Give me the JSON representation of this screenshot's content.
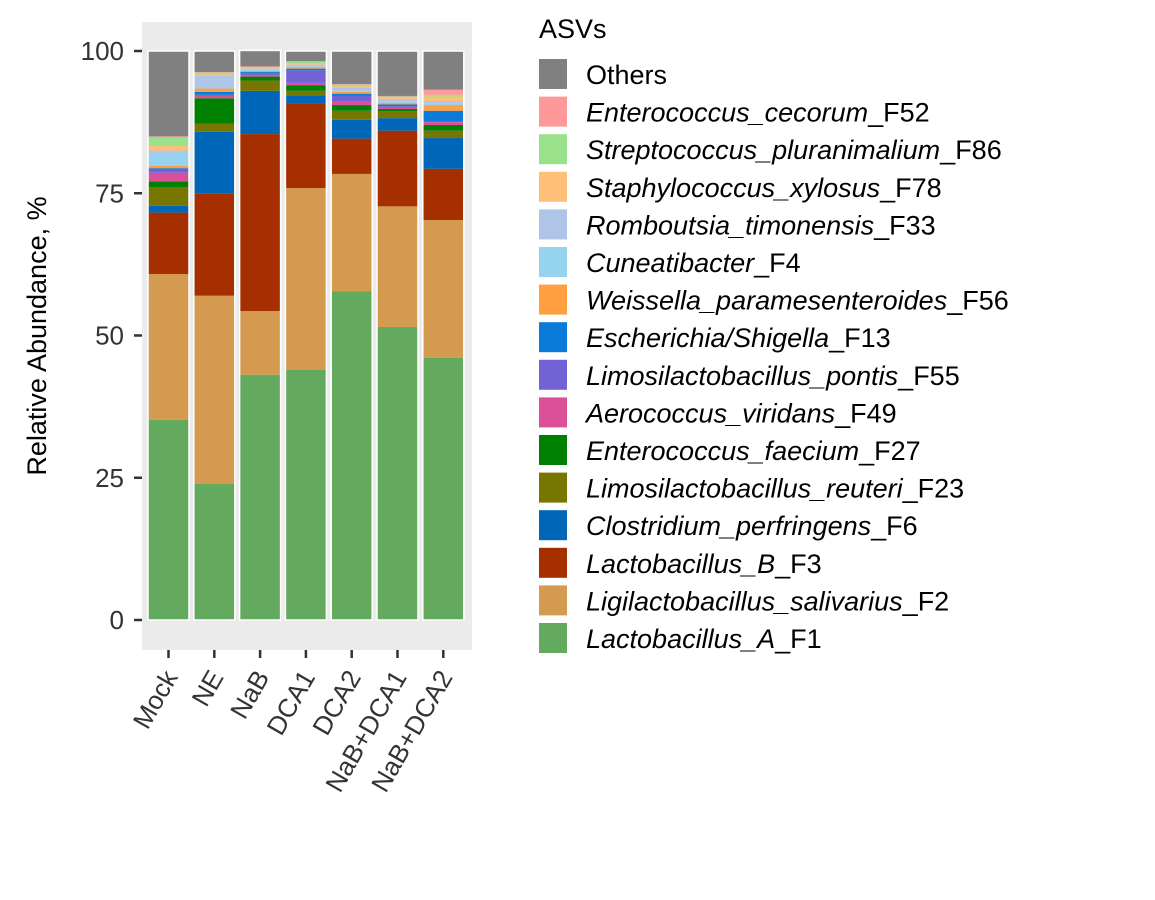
{
  "chart_data": {
    "type": "bar",
    "stacked": true,
    "ylabel": "Relative Abundance, %",
    "ylim": [
      0,
      100
    ],
    "yticks": [
      0,
      25,
      50,
      75,
      100
    ],
    "categories": [
      "Mock",
      "NE",
      "NaB",
      "DCA1",
      "DCA2",
      "NaB+DCA1",
      "NaB+DCA2"
    ],
    "legend_title": "ASVs",
    "legend_position": "right",
    "panel_background": "#EBEBEB",
    "series": [
      {
        "name": "Lactobacillus_A_F1",
        "italic": "Lactobacillus_A",
        "suffix": "_F1",
        "color": "#63AA5E",
        "values": [
          35.2,
          23.9,
          43.1,
          44.0,
          57.8,
          51.5,
          46.1
        ]
      },
      {
        "name": "Ligilactobacillus_salivarius_F2",
        "italic": "Ligilactobacillus_salivarius",
        "suffix": "_F2",
        "color": "#D49B50",
        "values": [
          25.6,
          33.1,
          11.2,
          31.9,
          20.6,
          21.2,
          24.2
        ]
      },
      {
        "name": "Lactobacillus_B_F3",
        "italic": "Lactobacillus_B",
        "suffix": "_F3",
        "color": "#A62F00",
        "values": [
          10.8,
          18.0,
          31.1,
          14.8,
          6.2,
          13.3,
          9.0
        ]
      },
      {
        "name": "Clostridium_perfringens_F6",
        "italic": "Clostridium_perfringens",
        "suffix": "_F6",
        "color": "#0066B8",
        "values": [
          1.2,
          10.8,
          7.6,
          1.5,
          3.3,
          2.2,
          5.4
        ]
      },
      {
        "name": "Limosilactobacillus_reuteri_F23",
        "italic": "Limosilactobacillus_reuteri",
        "suffix": "_F23",
        "color": "#767600",
        "values": [
          3.3,
          1.4,
          1.8,
          0.8,
          1.6,
          1.2,
          1.3
        ]
      },
      {
        "name": "Enterococcus_faecium_F27",
        "italic": "Enterococcus_faecium",
        "suffix": "_F27",
        "color": "#008000",
        "values": [
          1.0,
          4.5,
          0.7,
          1.0,
          1.0,
          0.4,
          1.0
        ]
      },
      {
        "name": "Aerococcus_viridans_F49",
        "italic": "Aerococcus_viridans",
        "suffix": "_F49",
        "color": "#DA4F98",
        "values": [
          1.5,
          0.4,
          0.3,
          0.4,
          0.6,
          0.2,
          0.5
        ]
      },
      {
        "name": "Limosilactobacillus_pontis_F55",
        "italic": "Limosilactobacillus_pontis",
        "suffix": "_F55",
        "color": "#7163D6",
        "values": [
          0.5,
          0.2,
          0.2,
          2.2,
          1.0,
          0.3,
          0.2
        ]
      },
      {
        "name": "Escherichia/Shigella_F13",
        "italic": "Escherichia/Shigella",
        "suffix": "_F13",
        "color": "#0A7BD8",
        "values": [
          0.3,
          0.5,
          0.3,
          0.3,
          0.4,
          0.3,
          1.8
        ]
      },
      {
        "name": "Weissella_paramesenteroides_F56",
        "italic": "Weissella_paramesenteroides",
        "suffix": "_F56",
        "color": "#FF9F40",
        "values": [
          0.4,
          0.6,
          0.2,
          0.2,
          0.3,
          0.3,
          1.0
        ]
      },
      {
        "name": "Cuneatibacter_F4",
        "italic": "Cuneatibacter",
        "suffix": "_F4",
        "color": "#95D3EF",
        "values": [
          2.2,
          0.2,
          0.2,
          0.2,
          0.2,
          0.3,
          0.3
        ]
      },
      {
        "name": "Romboutsia_timonensis_F33",
        "italic": "Romboutsia_timonensis",
        "suffix": "_F33",
        "color": "#AEC5E7",
        "values": [
          0.5,
          2.1,
          0.2,
          0.3,
          0.6,
          0.4,
          0.4
        ]
      },
      {
        "name": "Staphylococcus_xylosus_F78",
        "italic": "Staphylococcus_xylosus",
        "suffix": "_F78",
        "color": "#FFBF78",
        "values": [
          0.8,
          0.2,
          0.1,
          0.2,
          0.2,
          0.2,
          0.8
        ]
      },
      {
        "name": "Streptococcus_pluranimalium_F86",
        "italic": "Streptococcus_pluranimalium",
        "suffix": "_F86",
        "color": "#99E18A",
        "values": [
          1.5,
          0.3,
          0.2,
          0.3,
          0.3,
          0.2,
          0.3
        ]
      },
      {
        "name": "Enterococcus_cecorum_F52",
        "italic": "Enterococcus_cecorum",
        "suffix": "_F52",
        "color": "#FF9999",
        "values": [
          0.2,
          0.1,
          0.1,
          0.1,
          0.1,
          0.1,
          0.9
        ]
      },
      {
        "name": "Others",
        "italic": "",
        "suffix": "Others",
        "color": "#808080",
        "values": [
          15.0,
          3.7,
          2.8,
          1.8,
          5.8,
          7.9,
          6.8
        ]
      }
    ]
  }
}
